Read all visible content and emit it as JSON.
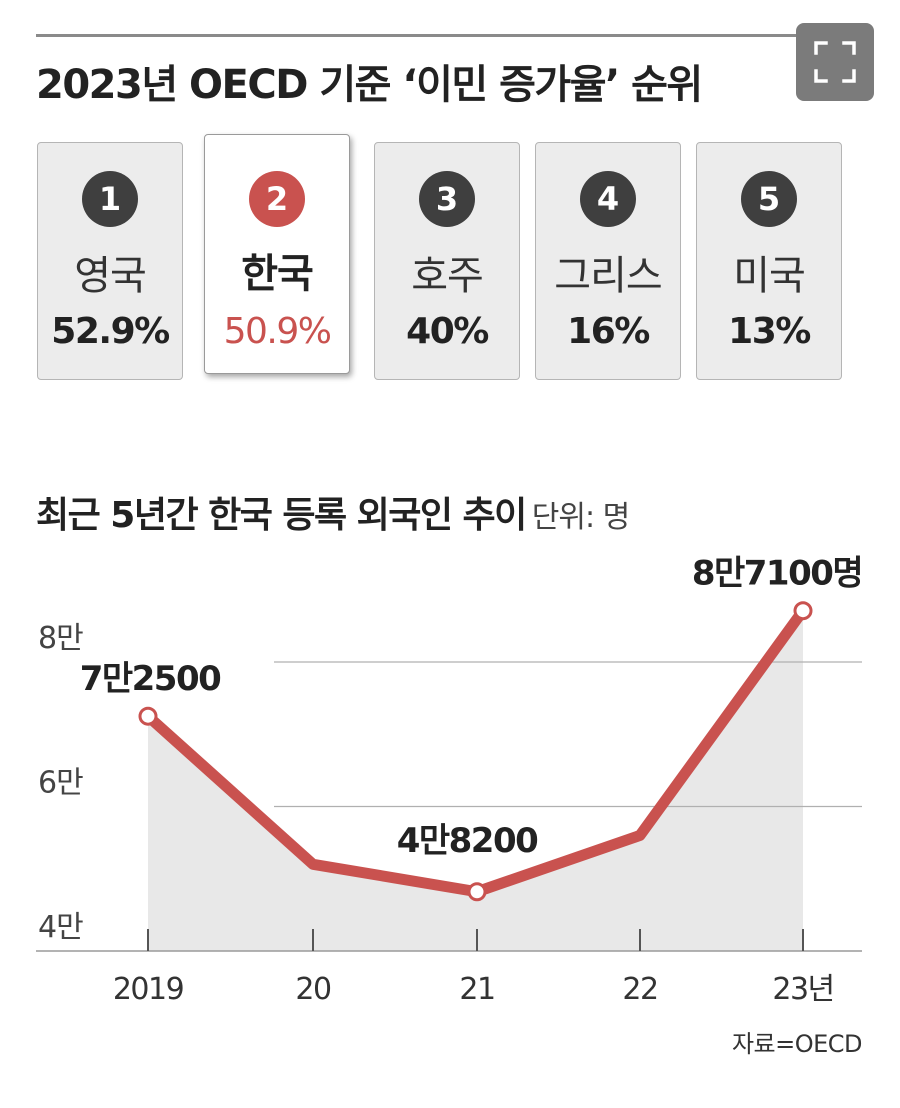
{
  "title": "2023년 OECD 기준 ‘이민 증가율’ 순위",
  "expand_icon": "fullscreen-expand-icon",
  "rankings": [
    {
      "rank": "1",
      "country": "영국",
      "rate": "52.9%"
    },
    {
      "rank": "2",
      "country": "한국",
      "rate": "50.9%",
      "highlight": true
    },
    {
      "rank": "3",
      "country": "호주",
      "rate": "40%"
    },
    {
      "rank": "4",
      "country": "그리스",
      "rate": "16%"
    },
    {
      "rank": "5",
      "country": "미국",
      "rate": "13%"
    }
  ],
  "colors": {
    "accent": "#c9524f",
    "badge": "#3f3f3f",
    "card_bg": "#ececec",
    "area_fill": "#e8e8e8",
    "grid": "#b0b0b0"
  },
  "chart_data": {
    "type": "line",
    "title": "최근 5년간 한국 등록 외국인 추이",
    "unit": "단위: 명",
    "categories": [
      "2019",
      "20",
      "21",
      "22",
      "23년"
    ],
    "series": [
      {
        "values": [
          72500,
          52000,
          48200,
          56000,
          87100
        ]
      }
    ],
    "data_labels": [
      {
        "index": 0,
        "text": "7만2500"
      },
      {
        "index": 2,
        "text": "4만8200"
      },
      {
        "index": 4,
        "text": "8만7100명"
      }
    ],
    "marker_indices": [
      0,
      2,
      4
    ],
    "yticks": [
      {
        "value": 40000,
        "label": "4만"
      },
      {
        "value": 60000,
        "label": "6만"
      },
      {
        "value": 80000,
        "label": "8만"
      }
    ],
    "ylim": [
      40000,
      80000
    ],
    "grid": true,
    "area_fill": true
  },
  "source": "자료=OECD"
}
